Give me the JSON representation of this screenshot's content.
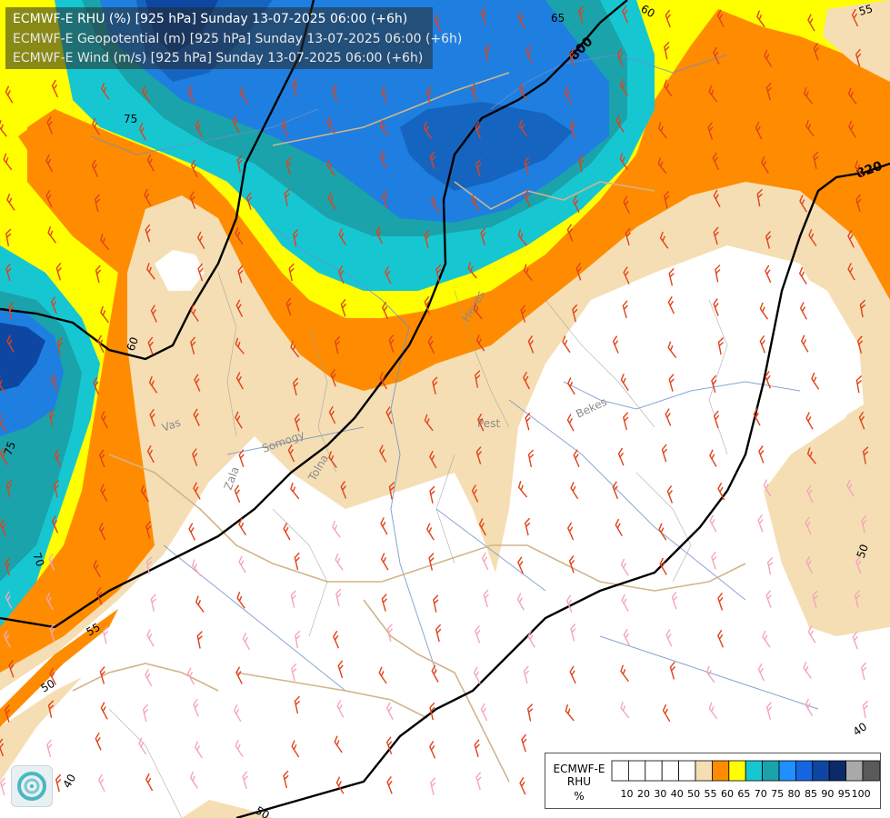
{
  "header": {
    "line1": "ECMWF-E RHU (%) [925 hPa] Sunday 13-07-2025 06:00 (+6h)",
    "line2": "ECMWF-E Geopotential (m) [925 hPa] Sunday 13-07-2025 06:00 (+6h)",
    "line3": "ECMWF-E Wind (m/s) [925 hPa] Sunday 13-07-2025 06:00 (+6h)"
  },
  "legend": {
    "title_line1": "ECMWF-E",
    "title_line2": "RHU",
    "title_line3": "%",
    "bins": [
      {
        "label": "10",
        "color": "#ffffff"
      },
      {
        "label": "20",
        "color": "#ffffff"
      },
      {
        "label": "30",
        "color": "#ffffff"
      },
      {
        "label": "40",
        "color": "#ffffff"
      },
      {
        "label": "50",
        "color": "#ffffff"
      },
      {
        "label": "55",
        "color": "#f5deb3"
      },
      {
        "label": "60",
        "color": "#ff8c00"
      },
      {
        "label": "65",
        "color": "#ffff00"
      },
      {
        "label": "70",
        "color": "#16c7d2"
      },
      {
        "label": "75",
        "color": "#1aa3ab"
      },
      {
        "label": "80",
        "color": "#1e90ff"
      },
      {
        "label": "85",
        "color": "#1565e0"
      },
      {
        "label": "90",
        "color": "#0d47a1"
      },
      {
        "label": "95",
        "color": "#0a2a6b"
      },
      {
        "label": "100",
        "color": "#a9a9a9"
      },
      {
        "label": "",
        "color": "#5a5a5a"
      }
    ]
  },
  "contour_labels": {
    "geopotential": [
      "800",
      "820"
    ],
    "rhu": [
      "60",
      "65",
      "75",
      "75",
      "70",
      "55",
      "50",
      "40",
      "40",
      "50",
      "55",
      "60",
      "50"
    ]
  },
  "place_labels": [
    "Heves",
    "Pest",
    "Bekes",
    "Somogy",
    "Tolna",
    "Vas",
    "Zala"
  ],
  "colors": {
    "geopotential_line": "#000000",
    "wind_barb_strong": "#e0421a",
    "wind_barb_weak": "#f4a6b8",
    "border_line": "#d2b48c",
    "river_line": "#6b8fc7"
  },
  "icons": {
    "logo": "ecmwf-logo-icon"
  }
}
